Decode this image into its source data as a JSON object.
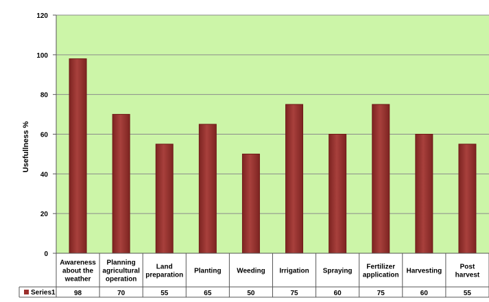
{
  "chart_data": {
    "type": "bar",
    "title": "",
    "xlabel": "",
    "ylabel": "Usefullness %",
    "ylim": [
      0,
      120
    ],
    "yticks": [
      0,
      20,
      40,
      60,
      80,
      100,
      120
    ],
    "grid": true,
    "legend_placement": "left of data table",
    "categories": [
      [
        "Awareness",
        "about the",
        "weather"
      ],
      [
        "Planning",
        "agricultural",
        "operation"
      ],
      [
        "Land",
        "preparation"
      ],
      [
        "Planting"
      ],
      [
        "Weeding"
      ],
      [
        "Irrigation"
      ],
      [
        "Spraying"
      ],
      [
        "Fertilizer",
        "application"
      ],
      [
        "Harvesting"
      ],
      [
        "Post",
        "harvest"
      ]
    ],
    "series": [
      {
        "name": "Series1",
        "values": [
          98,
          70,
          55,
          65,
          50,
          75,
          60,
          75,
          60,
          55
        ]
      }
    ],
    "colors": {
      "plot_background": "#ccf5a8",
      "bar_fill": "#9b2f2c",
      "bar_stroke": "#6e1a18",
      "gridline": "#8a8a8a"
    }
  }
}
